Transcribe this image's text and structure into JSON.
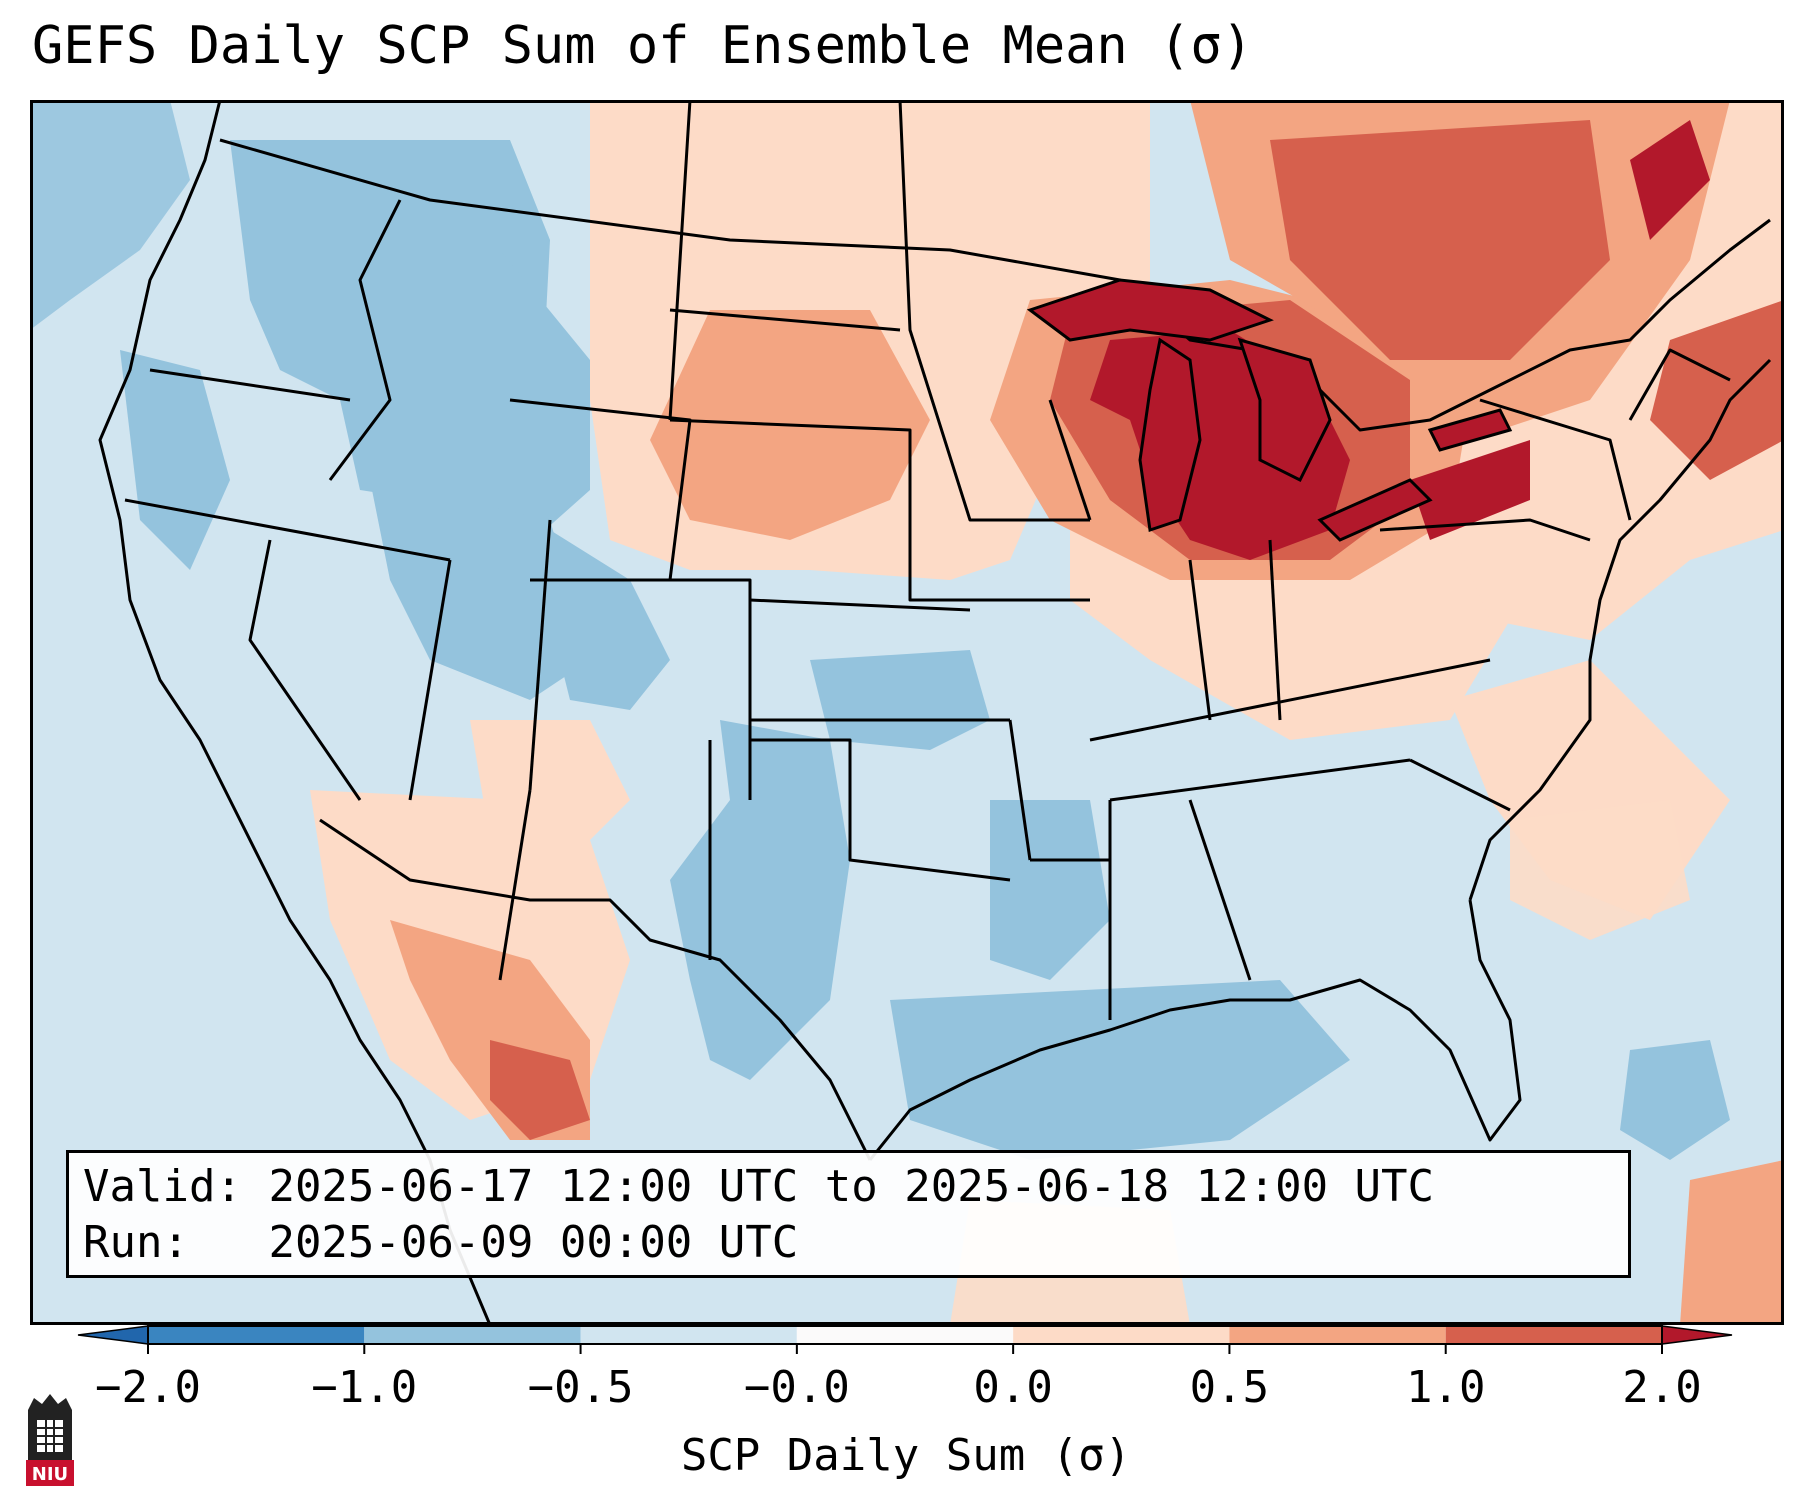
{
  "title": "GEFS Daily SCP Sum of Ensemble Mean (σ)",
  "info": {
    "valid_label": "Valid:",
    "valid_text": "2025-06-17 12:00 UTC to 2025-06-18 12:00 UTC",
    "run_label": "Run:",
    "run_text": "2025-06-09 00:00 UTC"
  },
  "colorbar": {
    "label": "SCP Daily Sum (σ)",
    "ticks": [
      "−2.0",
      "−1.0",
      "−0.5",
      "−0.0",
      "0.0",
      "0.5",
      "1.0",
      "2.0"
    ],
    "colors": [
      "#2166ac",
      "#3a85c0",
      "#94c3dd",
      "#d1e5f0",
      "#fbfafa",
      "#fddbc7",
      "#f3a582",
      "#d6604d",
      "#b2182b"
    ],
    "extend": "both"
  },
  "colors": {
    "ocean": "#d1e5f0",
    "land_neutral": "#d1e5f0",
    "blue_light": "#94c3dd",
    "orange_light": "#fddbc7",
    "orange_mid": "#f3a582",
    "red_mid": "#d6604d",
    "red_dark": "#b2182b",
    "border": "#000000"
  },
  "logo": {
    "text": "NIU",
    "name": "niu-logo-icon"
  }
}
